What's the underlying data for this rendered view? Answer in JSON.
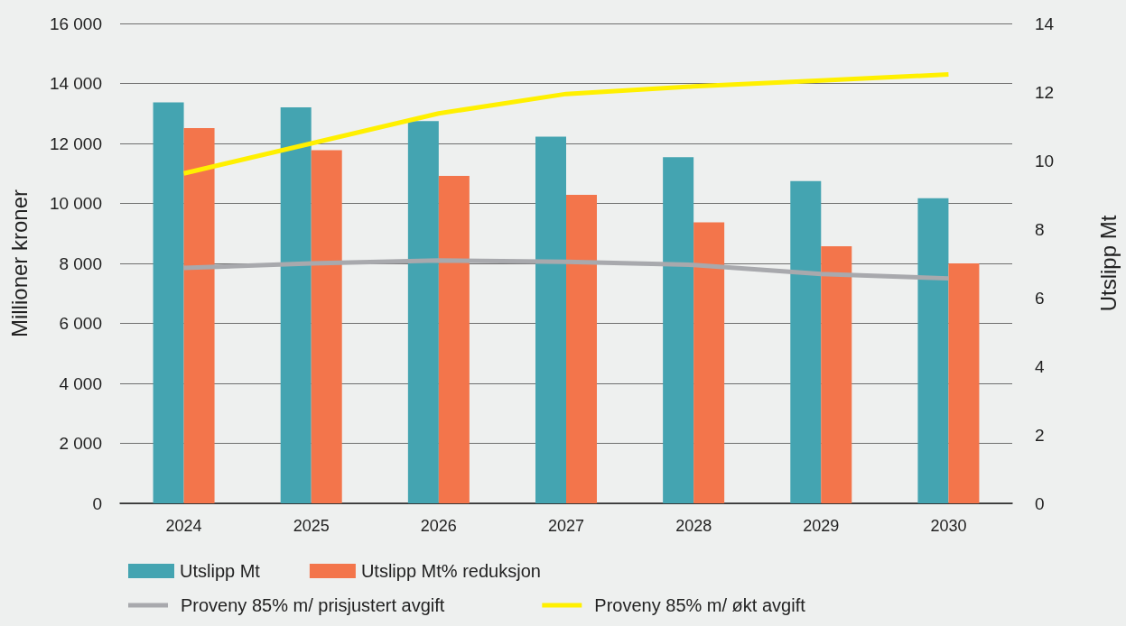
{
  "chart_data": {
    "type": "bar",
    "ylabel": "Millioner kroner",
    "y2label": "Utslipp Mt",
    "categories": [
      "2024",
      "2025",
      "2026",
      "2027",
      "2028",
      "2029",
      "2030"
    ],
    "series": [
      {
        "name": "Utslipp Mt",
        "axis": "y2",
        "color": "#44a4b1",
        "values": [
          11.7,
          11.55,
          11.15,
          10.7,
          10.1,
          9.4,
          8.9
        ]
      },
      {
        "name": "Utslipp Mt% reduksjon",
        "axis": "y2",
        "color": "#f3754b",
        "values": [
          10.95,
          10.3,
          9.55,
          9.0,
          8.2,
          7.5,
          7.0
        ]
      },
      {
        "name": "Proveny 85% m/ prisjustert avgift",
        "type": "line",
        "color": "#a8a9ad",
        "values": [
          7850,
          8000,
          8100,
          8050,
          7950,
          7650,
          7500
        ]
      },
      {
        "name": "Proveny 85% m/ økt avgift",
        "type": "line",
        "color": "#fff000",
        "values": [
          11000,
          12000,
          13000,
          13650,
          13900,
          14100,
          14300
        ]
      }
    ],
    "ylim": [
      0,
      16000
    ],
    "yticks": [
      {
        "value": 0,
        "label": "0"
      },
      {
        "value": 2000,
        "label": "2 000"
      },
      {
        "value": 4000,
        "label": "4 000"
      },
      {
        "value": 6000,
        "label": "6 000"
      },
      {
        "value": 8000,
        "label": "8 000"
      },
      {
        "value": 10000,
        "label": "10 000"
      },
      {
        "value": 12000,
        "label": "12 000"
      },
      {
        "value": 14000,
        "label": "14 000"
      },
      {
        "value": 16000,
        "label": "16 000"
      }
    ],
    "y2lim": [
      0,
      14
    ],
    "y2ticks": [
      0,
      2,
      4,
      6,
      8,
      10,
      12,
      14
    ],
    "grid": "y",
    "legend": "bottom",
    "marker": "none",
    "line_style": "solid"
  }
}
